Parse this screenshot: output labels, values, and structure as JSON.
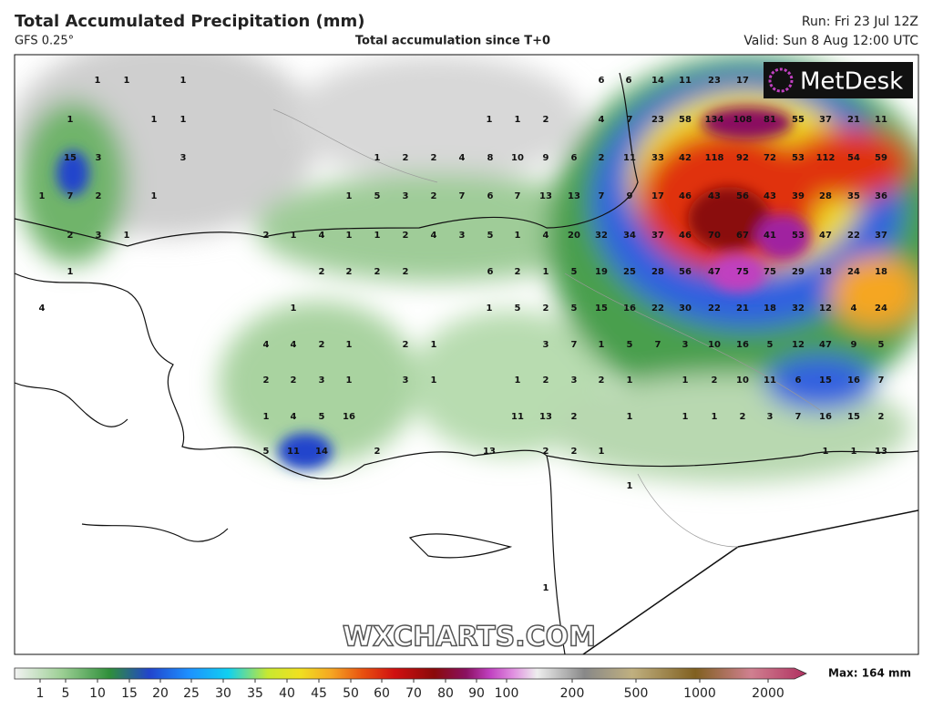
{
  "header": {
    "title": "Total Accumulated Precipitation (mm)",
    "model": "GFS 0.25°",
    "center": "Total accumulation since T+0",
    "run": "Run: Fri 23 Jul 12Z",
    "valid": "Valid: Sun 8 Aug 12:00 UTC"
  },
  "brand": "MetDesk",
  "watermark": "WXCHARTS.COM",
  "labels": [
    [
      1,
      1,
      1,
      6,
      6,
      14,
      11,
      23,
      17
    ],
    [
      1,
      1,
      1,
      1,
      1,
      2,
      4,
      7,
      23,
      58,
      134,
      108,
      81,
      55,
      37,
      21,
      11
    ],
    [
      15,
      3,
      3,
      1,
      2,
      2,
      4,
      8,
      10,
      9,
      6,
      2,
      11,
      33,
      42,
      118,
      92,
      72,
      53,
      112,
      54,
      59
    ],
    [
      1,
      7,
      2,
      1,
      1,
      5,
      3,
      2,
      7,
      6,
      7,
      13,
      13,
      7,
      9,
      17,
      46,
      43,
      56,
      43,
      39,
      28,
      35,
      36
    ],
    [
      2,
      3,
      1,
      2,
      1,
      4,
      1,
      1,
      2,
      4,
      3,
      5,
      1,
      4,
      20,
      32,
      34,
      37,
      46,
      70,
      67,
      41,
      53,
      47,
      22,
      37
    ],
    [
      1,
      2,
      2,
      2,
      2,
      6,
      2,
      1,
      5,
      19,
      25,
      28,
      56,
      47,
      75,
      75,
      29,
      18,
      24,
      18
    ],
    [
      4,
      1,
      1,
      5,
      2,
      5,
      15,
      16,
      22,
      30,
      22,
      21,
      18,
      32,
      12,
      4,
      24
    ],
    [
      4,
      4,
      2,
      1,
      2,
      1,
      3,
      7,
      1,
      5,
      7,
      3,
      10,
      16,
      5,
      12,
      47,
      9,
      5
    ],
    [
      2,
      2,
      3,
      1,
      3,
      1,
      1,
      2,
      3,
      2,
      1,
      1,
      2,
      10,
      11,
      6,
      15,
      16,
      7
    ],
    [
      1,
      4,
      5,
      16,
      11,
      13,
      2,
      1,
      1,
      1,
      2,
      3,
      7,
      16,
      15,
      2
    ],
    [
      5,
      11,
      14,
      2,
      13,
      2,
      2,
      1,
      1,
      1,
      13
    ],
    [
      1
    ],
    [
      1
    ]
  ],
  "colorbar": {
    "ticks": [
      1,
      5,
      10,
      15,
      20,
      25,
      30,
      35,
      40,
      45,
      50,
      60,
      70,
      80,
      90,
      100,
      200,
      500,
      1000,
      2000
    ],
    "max_label": "Max: 164 mm"
  }
}
